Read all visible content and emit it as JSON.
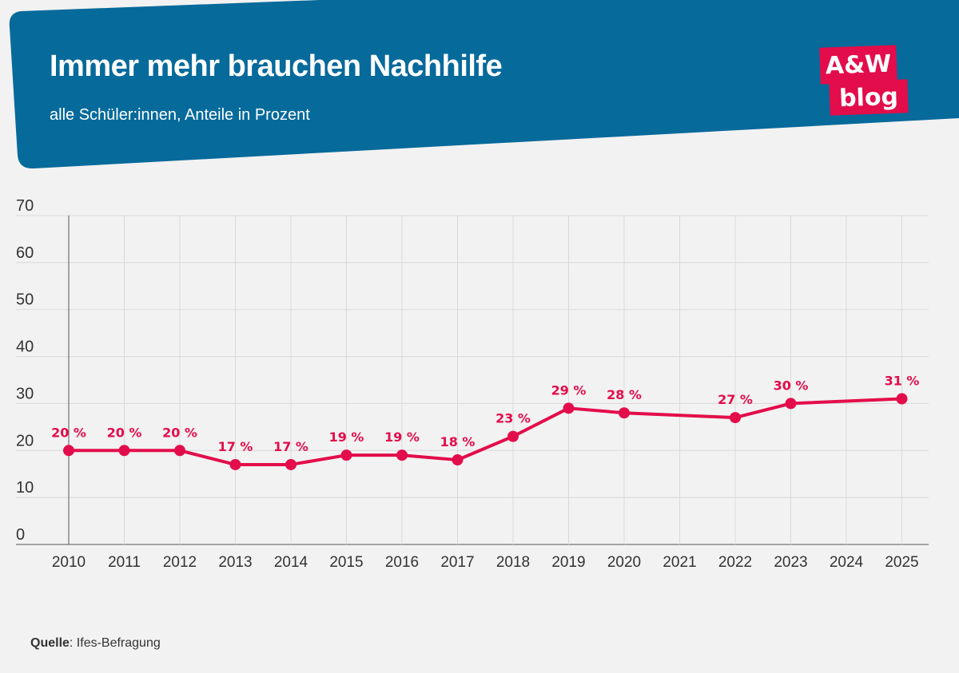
{
  "header": {
    "title": "Immer mehr brauchen Nachhilfe",
    "subtitle": "alle Schüler:innen, Anteile in Prozent",
    "banner_color": "#066a9b"
  },
  "logo": {
    "top_text": "A&W",
    "bottom_text": "blog",
    "color": "#e30d4b"
  },
  "chart_data": {
    "type": "line",
    "title": "Immer mehr brauchen Nachhilfe",
    "subtitle": "alle Schüler:innen, Anteile in Prozent",
    "xlabel": "",
    "ylabel": "",
    "x_ticks": [
      "2010",
      "2011",
      "2012",
      "2013",
      "2014",
      "2015",
      "2016",
      "2017",
      "2018",
      "2019",
      "2020",
      "2021",
      "2022",
      "2023",
      "2024",
      "2025"
    ],
    "y_ticks": [
      "0",
      "10",
      "20",
      "30",
      "40",
      "50",
      "60",
      "70"
    ],
    "ylim": [
      0,
      70
    ],
    "grid": true,
    "series": [
      {
        "color": "#e30d4b",
        "points": [
          {
            "x": 2010,
            "y": 20,
            "label": "20 %"
          },
          {
            "x": 2011,
            "y": 20,
            "label": "20 %"
          },
          {
            "x": 2012,
            "y": 20,
            "label": "20 %"
          },
          {
            "x": 2013,
            "y": 17,
            "label": "17 %"
          },
          {
            "x": 2014,
            "y": 17,
            "label": "17 %"
          },
          {
            "x": 2015,
            "y": 19,
            "label": "19 %"
          },
          {
            "x": 2016,
            "y": 19,
            "label": "19 %"
          },
          {
            "x": 2017,
            "y": 18,
            "label": "18 %"
          },
          {
            "x": 2018,
            "y": 23,
            "label": "23 %"
          },
          {
            "x": 2019,
            "y": 29,
            "label": "29 %"
          },
          {
            "x": 2020,
            "y": 28,
            "label": "28 %"
          },
          {
            "x": 2022,
            "y": 27,
            "label": "27 %"
          },
          {
            "x": 2023,
            "y": 30,
            "label": "30 %"
          },
          {
            "x": 2025,
            "y": 31,
            "label": "31 %"
          }
        ]
      }
    ]
  },
  "source": {
    "label": "Quelle",
    "text": ": Ifes-Befragung"
  }
}
